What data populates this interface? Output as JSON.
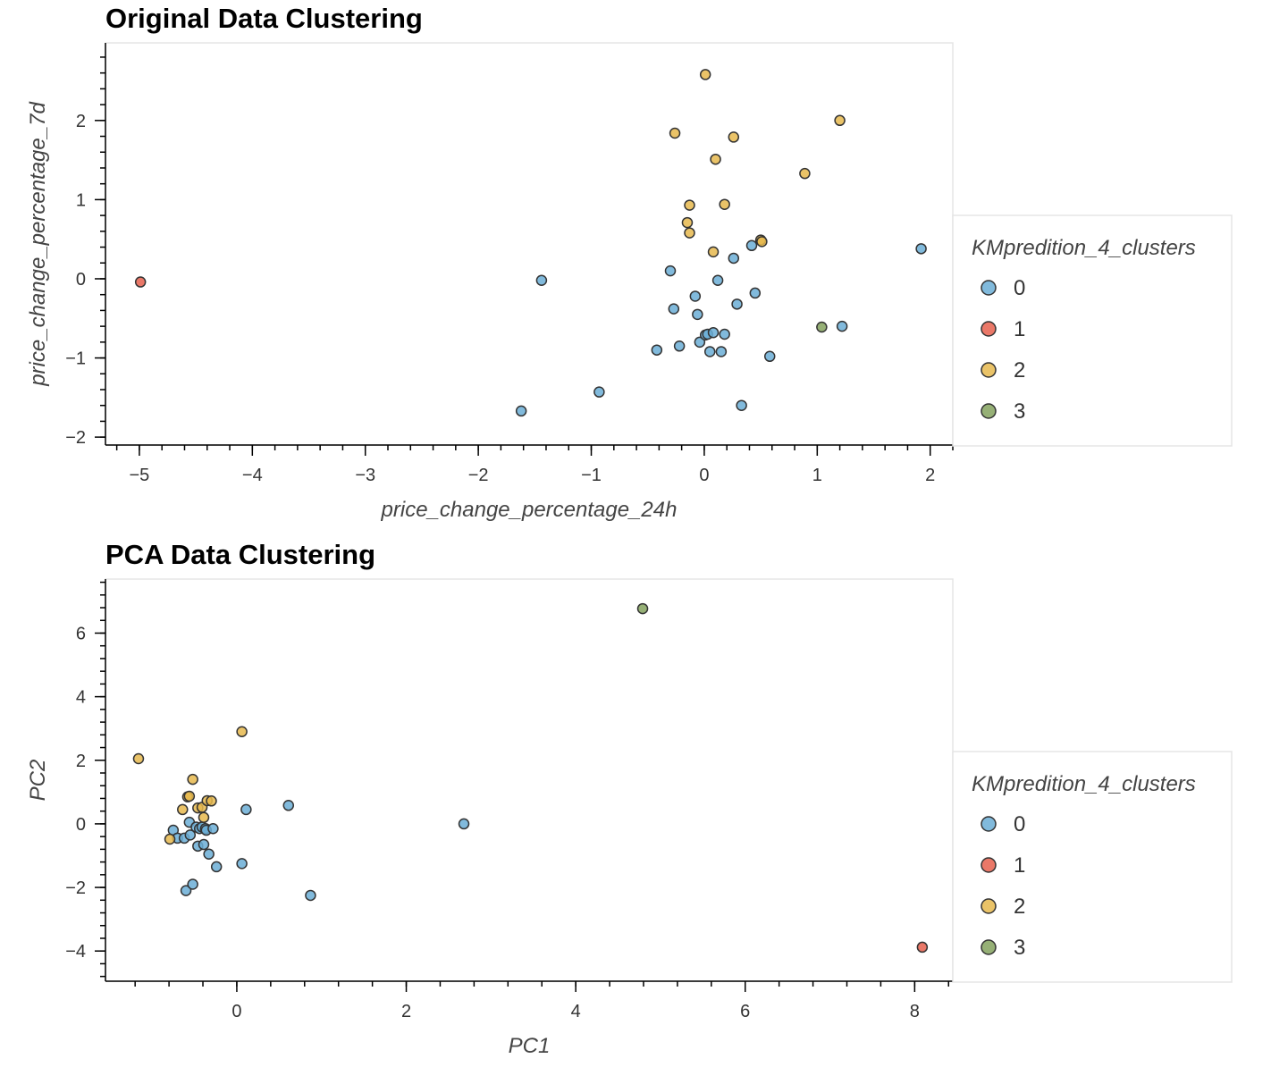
{
  "chart_data": [
    {
      "type": "scatter",
      "title": "Original Data Clustering",
      "xlabel": "price_change_percentage_24h",
      "ylabel": "price_change_percentage_7d",
      "xlim": [
        -5.3,
        2.2
      ],
      "ylim": [
        -2.1,
        2.98
      ],
      "xticks": [
        -5,
        -4,
        -3,
        -2,
        -1,
        0,
        1,
        2
      ],
      "yticks": [
        -2,
        -1,
        0,
        1,
        2
      ],
      "legend": {
        "title": "KMpredition_4_clusters",
        "position": "right"
      },
      "series": [
        {
          "name": "0",
          "color": "#6baed6",
          "points": [
            [
              -1.62,
              -1.67
            ],
            [
              -1.44,
              -0.02
            ],
            [
              -0.93,
              -1.43
            ],
            [
              -0.42,
              -0.9
            ],
            [
              -0.3,
              0.1
            ],
            [
              -0.27,
              -0.38
            ],
            [
              -0.22,
              -0.85
            ],
            [
              -0.08,
              -0.22
            ],
            [
              -0.06,
              -0.45
            ],
            [
              -0.04,
              -0.8
            ],
            [
              0.01,
              -0.71
            ],
            [
              0.03,
              -0.7
            ],
            [
              0.05,
              -0.92
            ],
            [
              0.08,
              -0.68
            ],
            [
              0.12,
              -0.02
            ],
            [
              0.15,
              -0.92
            ],
            [
              0.18,
              -0.7
            ],
            [
              0.26,
              0.26
            ],
            [
              0.29,
              -0.32
            ],
            [
              0.33,
              -1.6
            ],
            [
              0.42,
              0.42
            ],
            [
              0.45,
              -0.18
            ],
            [
              0.58,
              -0.98
            ],
            [
              1.22,
              -0.6
            ],
            [
              1.92,
              0.38
            ]
          ]
        },
        {
          "name": "1",
          "color": "#e6604d",
          "points": [
            [
              -4.99,
              -0.04
            ]
          ]
        },
        {
          "name": "2",
          "color": "#e6b84d",
          "points": [
            [
              0.01,
              2.58
            ],
            [
              -0.26,
              1.84
            ],
            [
              0.26,
              1.79
            ],
            [
              0.1,
              1.51
            ],
            [
              1.2,
              2.0
            ],
            [
              0.89,
              1.33
            ],
            [
              -0.13,
              0.93
            ],
            [
              0.18,
              0.94
            ],
            [
              -0.15,
              0.71
            ],
            [
              -0.13,
              0.58
            ],
            [
              0.08,
              0.34
            ],
            [
              0.5,
              0.49
            ],
            [
              0.51,
              0.47
            ]
          ]
        },
        {
          "name": "3",
          "color": "#84a25e",
          "points": [
            [
              1.04,
              -0.61
            ]
          ]
        }
      ]
    },
    {
      "type": "scatter",
      "title": "PCA Data Clustering",
      "xlabel": "PC1",
      "ylabel": "PC2",
      "xlim": [
        -1.55,
        8.45
      ],
      "ylim": [
        -4.95,
        7.7
      ],
      "xticks": [
        0,
        2,
        4,
        6,
        8
      ],
      "yticks": [
        -4,
        -2,
        0,
        2,
        4,
        6
      ],
      "legend": {
        "title": "KMpredition_4_clusters",
        "position": "right"
      },
      "series": [
        {
          "name": "0",
          "color": "#6baed6",
          "points": [
            [
              -0.75,
              -0.2
            ],
            [
              -0.7,
              -0.45
            ],
            [
              -0.62,
              -0.45
            ],
            [
              -0.6,
              -2.1
            ],
            [
              -0.56,
              0.05
            ],
            [
              -0.55,
              -0.35
            ],
            [
              -0.52,
              -1.9
            ],
            [
              -0.48,
              -0.1
            ],
            [
              -0.46,
              -0.7
            ],
            [
              -0.44,
              -0.15
            ],
            [
              -0.41,
              -0.1
            ],
            [
              -0.39,
              -0.65
            ],
            [
              -0.37,
              -0.15
            ],
            [
              -0.36,
              -0.2
            ],
            [
              -0.33,
              -0.95
            ],
            [
              -0.28,
              -0.15
            ],
            [
              -0.24,
              -1.35
            ],
            [
              0.06,
              -1.25
            ],
            [
              0.11,
              0.45
            ],
            [
              0.61,
              0.58
            ],
            [
              0.87,
              -2.25
            ],
            [
              2.68,
              0.0
            ]
          ]
        },
        {
          "name": "1",
          "color": "#e6604d",
          "points": [
            [
              8.09,
              -3.88
            ]
          ]
        },
        {
          "name": "2",
          "color": "#e6b84d",
          "points": [
            [
              -1.16,
              2.05
            ],
            [
              -0.79,
              -0.48
            ],
            [
              -0.64,
              0.45
            ],
            [
              -0.58,
              0.85
            ],
            [
              -0.56,
              0.87
            ],
            [
              -0.52,
              1.4
            ],
            [
              -0.46,
              0.5
            ],
            [
              -0.41,
              0.52
            ],
            [
              -0.39,
              0.2
            ],
            [
              -0.35,
              0.73
            ],
            [
              -0.3,
              0.72
            ],
            [
              0.06,
              2.9
            ]
          ]
        },
        {
          "name": "3",
          "color": "#84a25e",
          "points": [
            [
              4.79,
              6.77
            ]
          ]
        }
      ]
    }
  ]
}
